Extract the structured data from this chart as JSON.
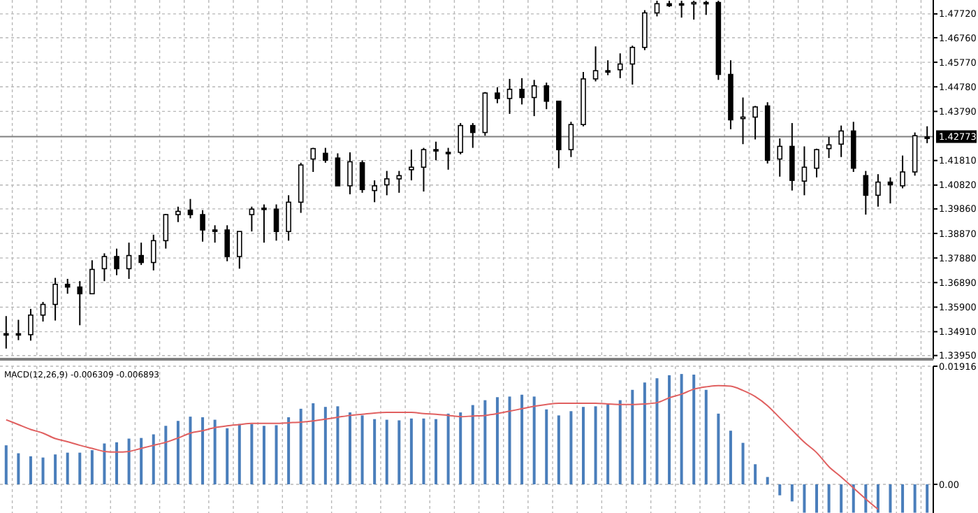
{
  "chart_data": [
    {
      "type": "candlestick",
      "categories": [
        null,
        null,
        null,
        null,
        null,
        null,
        null,
        null,
        null,
        null,
        null,
        null,
        null,
        null,
        null,
        null,
        null,
        null,
        null,
        null,
        null,
        null,
        null,
        null,
        null,
        null,
        null,
        null,
        null,
        null,
        null,
        null,
        null,
        null,
        null,
        null,
        null,
        null,
        null,
        null,
        null,
        null,
        null,
        null,
        null,
        null,
        null,
        null,
        null,
        null,
        null,
        null,
        null,
        null,
        null,
        null,
        null,
        null,
        null,
        null,
        null,
        null,
        null,
        null,
        null,
        null,
        null,
        null,
        null,
        null,
        null,
        null,
        null,
        null,
        null,
        null
      ],
      "ohlc": [
        [
          1.3483,
          1.3554,
          1.3423,
          1.3483
        ],
        [
          1.3483,
          1.3539,
          1.3457,
          1.3483
        ],
        [
          1.3479,
          1.3583,
          1.3455,
          1.3558
        ],
        [
          1.3558,
          1.3611,
          1.3532,
          1.3601
        ],
        [
          1.3601,
          1.3708,
          1.3536,
          1.3682
        ],
        [
          1.3682,
          1.3704,
          1.3644,
          1.3671
        ],
        [
          1.3671,
          1.3695,
          1.3517,
          1.3644
        ],
        [
          1.3644,
          1.3779,
          1.3644,
          1.3742
        ],
        [
          1.3745,
          1.3807,
          1.3695,
          1.3794
        ],
        [
          1.3794,
          1.3826,
          1.3719,
          1.3745
        ],
        [
          1.3745,
          1.385,
          1.3704,
          1.3798
        ],
        [
          1.3798,
          1.385,
          1.376,
          1.377
        ],
        [
          1.377,
          1.3882,
          1.3738,
          1.3858
        ],
        [
          1.3858,
          1.3966,
          1.3826,
          1.3963
        ],
        [
          1.3963,
          1.3995,
          1.3933,
          1.3976
        ],
        [
          1.3981,
          1.4026,
          1.3948,
          1.3963
        ],
        [
          1.3963,
          1.3981,
          1.3854,
          1.3901
        ],
        [
          1.3901,
          1.392,
          1.385,
          1.3901
        ],
        [
          1.3901,
          1.392,
          1.3775,
          1.3794
        ],
        [
          1.3794,
          1.3895,
          1.3745,
          1.3895
        ],
        [
          1.3963,
          1.3995,
          1.3895,
          1.3985
        ],
        [
          1.3989,
          1.4004,
          1.385,
          1.3989
        ],
        [
          1.3985,
          1.4004,
          1.3858,
          1.3895
        ],
        [
          1.3895,
          1.4041,
          1.3858,
          1.4013
        ],
        [
          1.4013,
          1.4172,
          1.397,
          1.4163
        ],
        [
          1.4187,
          1.4232,
          1.4135,
          1.4229
        ],
        [
          1.421,
          1.4232,
          1.4172,
          1.4182
        ],
        [
          1.4191,
          1.421,
          1.4079,
          1.4079
        ],
        [
          1.4079,
          1.4214,
          1.4045,
          1.4176
        ],
        [
          1.4172,
          1.4182,
          1.4051,
          1.4064
        ],
        [
          1.406,
          1.4101,
          1.4013,
          1.4079
        ],
        [
          1.4083,
          1.4139,
          1.4041,
          1.4107
        ],
        [
          1.4107,
          1.4139,
          1.4051,
          1.412
        ],
        [
          1.4144,
          1.4225,
          1.4101,
          1.4154
        ],
        [
          1.4154,
          1.4232,
          1.4056,
          1.4225
        ],
        [
          1.4225,
          1.4257,
          1.4182,
          1.4225
        ],
        [
          1.4214,
          1.4232,
          1.4144,
          1.4214
        ],
        [
          1.4214,
          1.4332,
          1.4206,
          1.4322
        ],
        [
          1.4322,
          1.4332,
          1.4232,
          1.4294
        ],
        [
          1.4294,
          1.4457,
          1.4281,
          1.4453
        ],
        [
          1.4453,
          1.4476,
          1.4412,
          1.4431
        ],
        [
          1.4431,
          1.451,
          1.4369,
          1.4468
        ],
        [
          1.4468,
          1.4513,
          1.4407,
          1.4435
        ],
        [
          1.4435,
          1.4506,
          1.436,
          1.4482
        ],
        [
          1.4482,
          1.4495,
          1.4388,
          1.442
        ],
        [
          1.442,
          1.442,
          1.415,
          1.4225
        ],
        [
          1.4225,
          1.4337,
          1.4195,
          1.4326
        ],
        [
          1.4326,
          1.4538,
          1.4319,
          1.451
        ],
        [
          1.451,
          1.4641,
          1.45,
          1.4543
        ],
        [
          1.4543,
          1.4585,
          1.4525,
          1.4538
        ],
        [
          1.4547,
          1.4613,
          1.4513,
          1.457
        ],
        [
          1.457,
          1.4644,
          1.4487,
          1.4637
        ],
        [
          1.4637,
          1.4787,
          1.4626,
          1.4776
        ],
        [
          1.4776,
          1.4825,
          1.4762,
          1.4813
        ],
        [
          1.4813,
          1.4825,
          1.48,
          1.4805
        ],
        [
          1.4813,
          1.4825,
          1.4757,
          1.4813
        ],
        [
          1.4813,
          1.4825,
          1.4749,
          1.4818
        ],
        [
          1.4818,
          1.4825,
          1.4768,
          1.4818
        ],
        [
          1.4818,
          1.4825,
          1.4506,
          1.4528
        ],
        [
          1.4528,
          1.4585,
          1.4307,
          1.4345
        ],
        [
          1.435,
          1.4435,
          1.4247,
          1.4356
        ],
        [
          1.4356,
          1.4401,
          1.4266,
          1.4397
        ],
        [
          1.4401,
          1.4416,
          1.4169,
          1.4182
        ],
        [
          1.4187,
          1.427,
          1.4116,
          1.4238
        ],
        [
          1.4238,
          1.4332,
          1.406,
          1.4101
        ],
        [
          1.4098,
          1.4238,
          1.4041,
          1.4154
        ],
        [
          1.415,
          1.4229,
          1.4113,
          1.4225
        ],
        [
          1.4229,
          1.4276,
          1.4191,
          1.4244
        ],
        [
          1.4247,
          1.4322,
          1.4195,
          1.43
        ],
        [
          1.43,
          1.4337,
          1.4135,
          1.415
        ],
        [
          1.412,
          1.4139,
          1.3963,
          1.4041
        ],
        [
          1.4041,
          1.4126,
          1.3995,
          1.4094
        ],
        [
          1.4094,
          1.4113,
          1.4008,
          1.4083
        ],
        [
          1.4079,
          1.4201,
          1.4069,
          1.4135
        ],
        [
          1.4135,
          1.4294,
          1.412,
          1.4281
        ],
        [
          1.4276,
          1.4319,
          1.4251,
          1.427
        ]
      ],
      "color": "#000000",
      "ylim": [
        1.338,
        1.4828
      ],
      "yticks": [
        {
          "value": 1.3395,
          "label": "1.33950"
        },
        {
          "value": 1.3491,
          "label": "1.34910"
        },
        {
          "value": 1.359,
          "label": "1.35900"
        },
        {
          "value": 1.3689,
          "label": "1.36890"
        },
        {
          "value": 1.3788,
          "label": "1.37880"
        },
        {
          "value": 1.3887,
          "label": "1.38870"
        },
        {
          "value": 1.3986,
          "label": "1.39860"
        },
        {
          "value": 1.4082,
          "label": "1.40820"
        },
        {
          "value": 1.4181,
          "label": "1.41810"
        },
        {
          "value": 1.4379,
          "label": "1.43790"
        },
        {
          "value": 1.4478,
          "label": "1.44780"
        },
        {
          "value": 1.4577,
          "label": "1.45770"
        },
        {
          "value": 1.4676,
          "label": "1.46760"
        },
        {
          "value": 1.4772,
          "label": "1.47720"
        }
      ],
      "ref_lines": [
        {
          "axis": "y",
          "value": 1.42773,
          "label": "1.42773",
          "color": "#808080"
        }
      ],
      "grid": true
    },
    {
      "type": "bar",
      "categories": [
        null,
        null,
        null,
        null,
        null,
        null,
        null,
        null,
        null,
        null,
        null,
        null,
        null,
        null,
        null,
        null,
        null,
        null,
        null,
        null,
        null,
        null,
        null,
        null,
        null,
        null,
        null,
        null,
        null,
        null,
        null,
        null,
        null,
        null,
        null,
        null,
        null,
        null,
        null,
        null,
        null,
        null,
        null,
        null,
        null,
        null,
        null,
        null,
        null,
        null,
        null,
        null,
        null,
        null,
        null,
        null,
        null,
        null,
        null,
        null,
        null,
        null,
        null,
        null,
        null,
        null,
        null,
        null,
        null,
        null,
        null,
        null,
        null,
        null,
        null,
        null
      ],
      "series": [
        {
          "type": "bar",
          "color": "#4a7ebb",
          "values": [
            0.00633,
            0.00504,
            0.00455,
            0.00435,
            0.00485,
            0.00514,
            0.00514,
            0.00554,
            0.00663,
            0.00682,
            0.00742,
            0.00752,
            0.00811,
            0.00949,
            0.01029,
            0.01098,
            0.01088,
            0.01048,
            0.0091,
            0.00979,
            0.00979,
            0.00949,
            0.00959,
            0.01088,
            0.01226,
            0.01315,
            0.01256,
            0.01266,
            0.01167,
            0.01118,
            0.01058,
            0.01048,
            0.01038,
            0.01068,
            0.01068,
            0.01058,
            0.01147,
            0.01167,
            0.01286,
            0.01365,
            0.01414,
            0.01424,
            0.01454,
            0.01424,
            0.01216,
            0.01118,
            0.01187,
            0.01256,
            0.01266,
            0.01296,
            0.01365,
            0.01533,
            0.01652,
            0.01721,
            0.0177,
            0.0179,
            0.0178,
            0.01533,
            0.01147,
            0.0087,
            0.00673,
            0.00326,
            0.00119,
            -0.00178,
            -0.00277,
            -0.0046,
            -0.0046,
            -0.0046,
            -0.0046,
            -0.0046,
            -0.0046,
            -0.0046,
            -0.0046,
            -0.0046,
            -0.0046,
            -0.0046
          ]
        },
        {
          "type": "line",
          "color": "#e06060",
          "values": [
            0.01048,
            0.00969,
            0.0089,
            0.00831,
            0.00742,
            0.00692,
            0.00633,
            0.00584,
            0.00534,
            0.00524,
            0.00534,
            0.00584,
            0.00633,
            0.00682,
            0.00752,
            0.00831,
            0.0087,
            0.0092,
            0.00949,
            0.00969,
            0.00989,
            0.00989,
            0.00989,
            0.00999,
            0.01009,
            0.01029,
            0.01058,
            0.01088,
            0.01118,
            0.01137,
            0.01157,
            0.01167,
            0.01167,
            0.01167,
            0.01147,
            0.01137,
            0.01118,
            0.01098,
            0.01108,
            0.01118,
            0.01147,
            0.01187,
            0.01226,
            0.01266,
            0.01296,
            0.01315,
            0.01315,
            0.01315,
            0.01315,
            0.01305,
            0.01296,
            0.01296,
            0.01305,
            0.01325,
            0.01404,
            0.01464,
            0.01543,
            0.01582,
            0.01602,
            0.01592,
            0.01523,
            0.01424,
            0.01276,
            0.01078,
            0.0088,
            0.00682,
            0.00514,
            0.00287,
            0.00119,
            -0.00059,
            -0.00237,
            -0.00405,
            null,
            null,
            null,
            null
          ]
        }
      ],
      "ylim": [
        -0.00465,
        0.01916
      ],
      "yticks": [
        {
          "value": 0,
          "label": "0.00"
        },
        0.01916
      ],
      "annotations": [
        "MACD(12,26,9) -0.006309 -0.006893"
      ],
      "grid": true
    }
  ]
}
